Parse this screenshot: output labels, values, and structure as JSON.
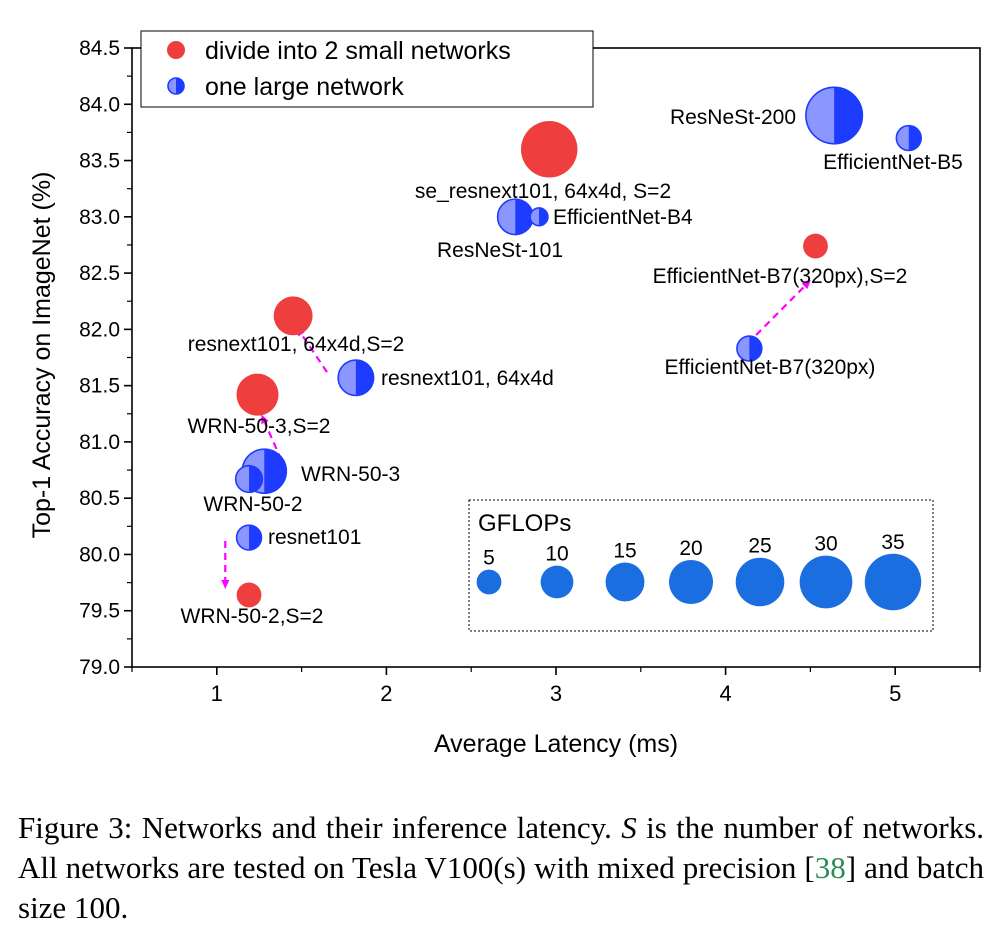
{
  "chart_data": {
    "type": "scatter",
    "xlabel": "Average Latency (ms)",
    "ylabel": "Top-1 Accuracy on ImageNet (%)",
    "xlim": [
      0.5,
      5.5
    ],
    "ylim": [
      79.0,
      84.5
    ],
    "x_ticks": [
      1,
      2,
      3,
      4,
      5
    ],
    "x_tick_labels": [
      "1",
      "2",
      "3",
      "4",
      "5"
    ],
    "y_ticks": [
      79.0,
      79.5,
      80.0,
      80.5,
      81.0,
      81.5,
      82.0,
      82.5,
      83.0,
      83.5,
      84.0,
      84.5
    ],
    "y_tick_labels": [
      "79.0",
      "79.5",
      "80.0",
      "80.5",
      "81.0",
      "81.5",
      "82.0",
      "82.5",
      "83.0",
      "83.5",
      "84.0",
      "84.5"
    ],
    "legend": {
      "position": "top-left",
      "entries": [
        {
          "label": "divide into 2 small networks",
          "series": "divide"
        },
        {
          "label": "one large network",
          "series": "large"
        }
      ]
    },
    "series": [
      {
        "name": "divide into 2 small networks",
        "key": "divide",
        "color": "#ef3e3e",
        "points": [
          {
            "label": "se_resnext101, 64x4d, S=2",
            "x": 2.96,
            "y": 83.6,
            "gflops": 35
          },
          {
            "label": "EfficientNet-B7(320px),S=2",
            "x": 4.53,
            "y": 82.74,
            "gflops": 5
          },
          {
            "label": "resnext101, 64x4d,S=2",
            "x": 1.45,
            "y": 82.12,
            "gflops": 15
          },
          {
            "label": "WRN-50-3,S=2",
            "x": 1.24,
            "y": 81.42,
            "gflops": 18
          },
          {
            "label": "WRN-50-2,S=2",
            "x": 1.19,
            "y": 79.64,
            "gflops": 5
          }
        ]
      },
      {
        "name": "one large network",
        "key": "large",
        "color": "#1e3cff",
        "points": [
          {
            "label": "ResNeSt-200",
            "x": 4.64,
            "y": 83.9,
            "gflops": 35
          },
          {
            "label": "EfficientNet-B5",
            "x": 5.08,
            "y": 83.7,
            "gflops": 5
          },
          {
            "label": "ResNeSt-101",
            "x": 2.76,
            "y": 83.0,
            "gflops": 12
          },
          {
            "label": "EfficientNet-B4",
            "x": 2.9,
            "y": 83.0,
            "gflops": 2
          },
          {
            "label": "EfficientNet-B7(320px)",
            "x": 4.14,
            "y": 81.83,
            "gflops": 5
          },
          {
            "label": "resnext101, 64x4d",
            "x": 1.82,
            "y": 81.57,
            "gflops": 12
          },
          {
            "label": "WRN-50-3",
            "x": 1.28,
            "y": 80.74,
            "gflops": 20
          },
          {
            "label": "WRN-50-2",
            "x": 1.19,
            "y": 80.67,
            "gflops": 6
          },
          {
            "label": "resnet101",
            "x": 1.19,
            "y": 80.15,
            "gflops": 5
          }
        ]
      }
    ],
    "arrows": [
      {
        "from": [
          1.05,
          80.12
        ],
        "to": [
          1.05,
          79.72
        ]
      },
      {
        "from": [
          1.65,
          81.62
        ],
        "to": [
          1.48,
          82.0
        ]
      },
      {
        "from": [
          1.38,
          80.84
        ],
        "to": [
          1.27,
          81.22
        ]
      },
      {
        "from": [
          4.18,
          81.95
        ],
        "to": [
          4.49,
          82.42
        ]
      }
    ],
    "gflops_legend": {
      "title": "GFLOPs",
      "values": [
        5,
        10,
        15,
        20,
        25,
        30,
        35
      ]
    }
  },
  "caption": {
    "prefix": "Figure 3: Networks and their inference latency. ",
    "var": "S",
    "middle": " is the number of networks. All networks are tested on Tesla V100(s) with mixed precision [",
    "cite": "38",
    "suffix": "] and batch size 100."
  },
  "colors": {
    "red": "#ef3e3e",
    "blue": "#1e3cff",
    "blue_light": "#8c96ff",
    "gflops_blue": "#1a6ee0",
    "arrow": "#ff00ff"
  }
}
